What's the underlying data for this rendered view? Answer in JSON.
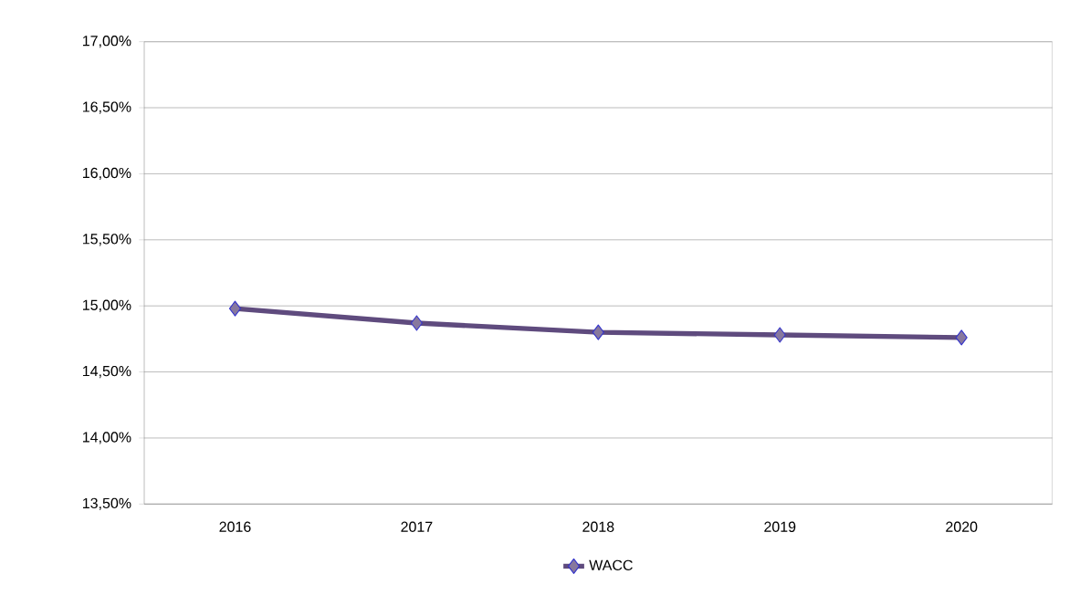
{
  "chart_data": {
    "type": "line",
    "categories": [
      "2016",
      "2017",
      "2018",
      "2019",
      "2020"
    ],
    "series": [
      {
        "name": "WACC",
        "color": "#5f4b7e",
        "values": [
          14.98,
          14.87,
          14.8,
          14.78,
          14.76
        ]
      }
    ],
    "ylim": [
      13.5,
      17.0
    ],
    "yticks": [
      {
        "value": 13.5,
        "label": "13,50%"
      },
      {
        "value": 14.0,
        "label": "14,00%"
      },
      {
        "value": 14.5,
        "label": "14,50%"
      },
      {
        "value": 15.0,
        "label": "15,00%"
      },
      {
        "value": 15.5,
        "label": "15,50%"
      },
      {
        "value": 16.0,
        "label": "16,00%"
      },
      {
        "value": 16.5,
        "label": "16,50%"
      },
      {
        "value": 17.0,
        "label": "17,00%"
      }
    ],
    "grid": "y",
    "legend": "bottom",
    "marker": "diamond",
    "line_style": "solid"
  }
}
